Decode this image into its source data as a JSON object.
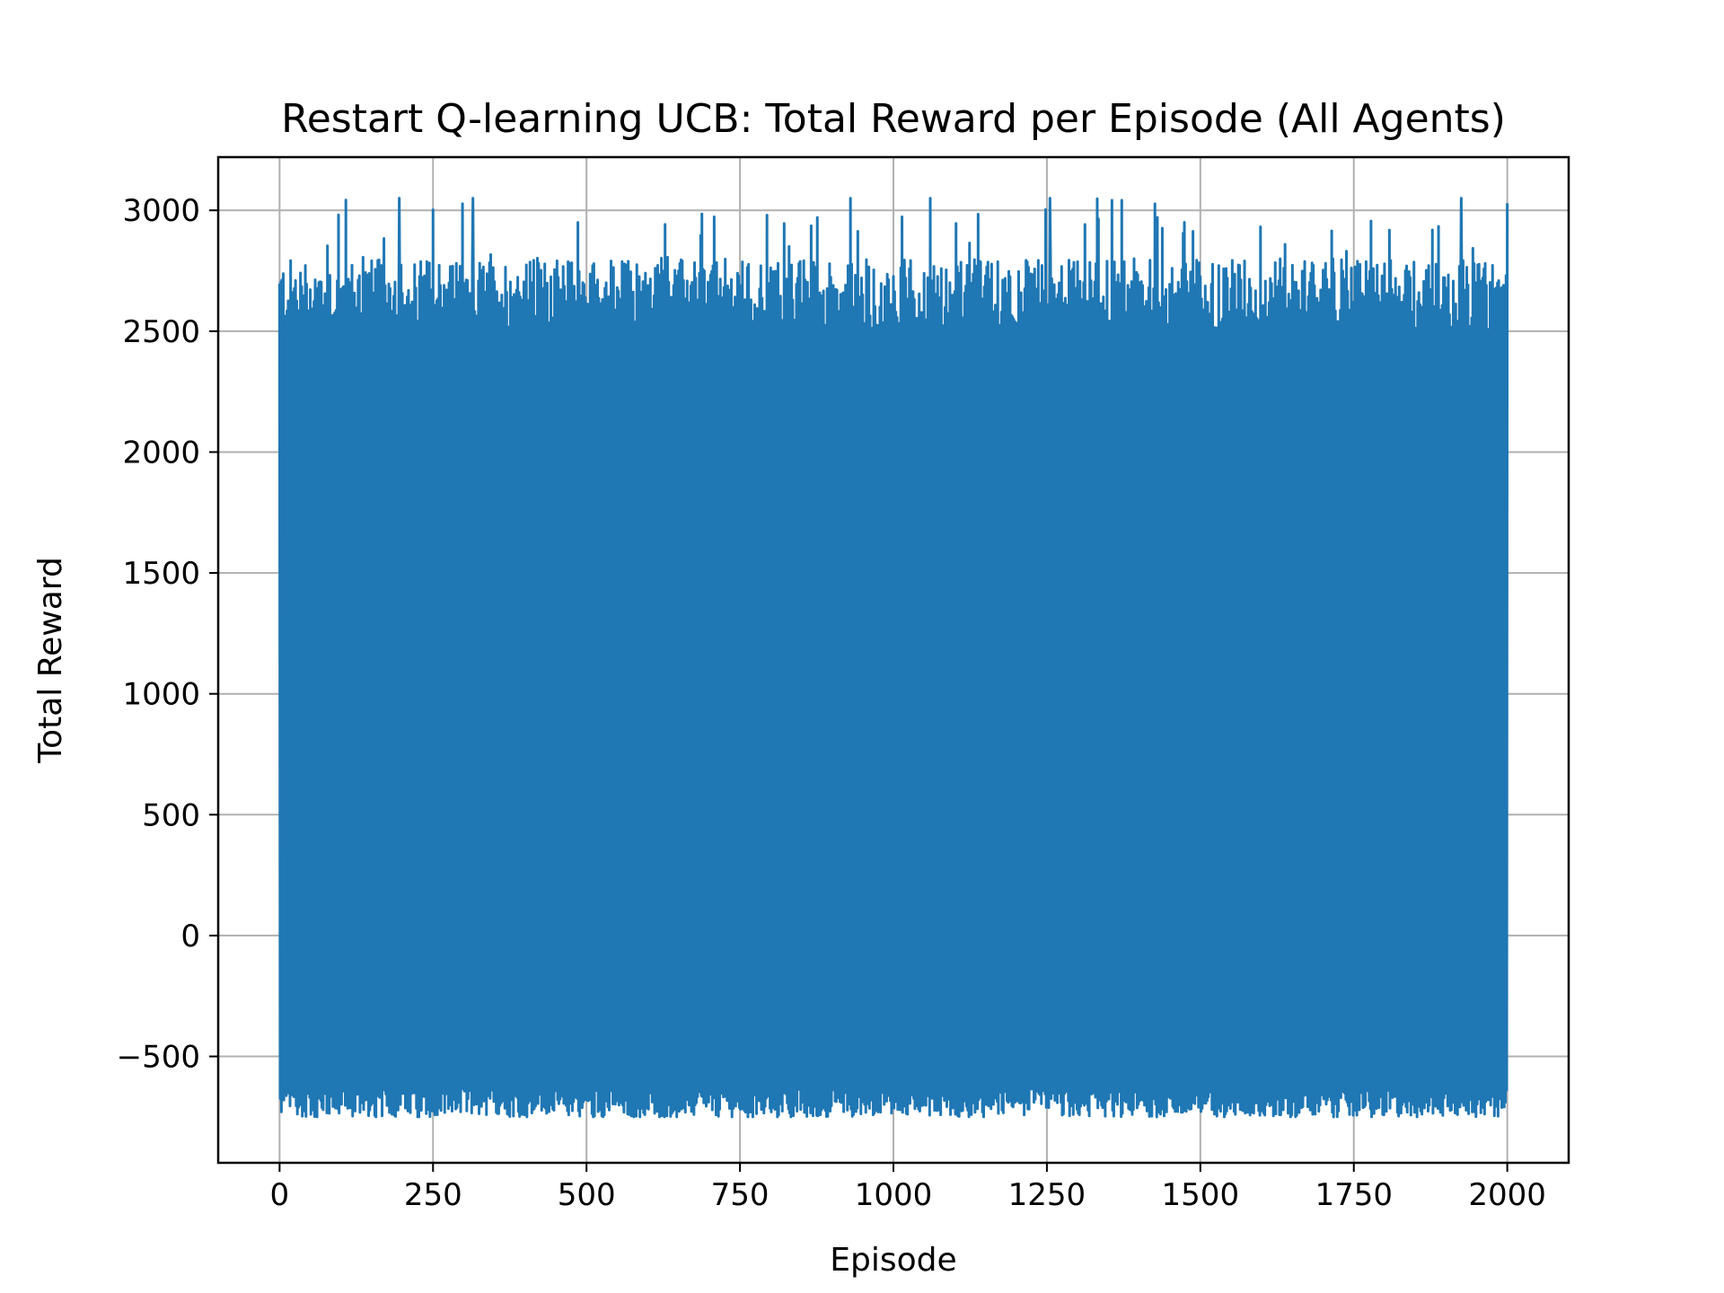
{
  "chart_data": {
    "type": "line",
    "title": "Restart Q-learning UCB: Total Reward per Episode (All Agents)",
    "xlabel": "Episode",
    "ylabel": "Total Reward",
    "xlim": [
      -100,
      2100
    ],
    "ylim": [
      -940,
      3220
    ],
    "xticks": [
      0,
      250,
      500,
      750,
      1000,
      1250,
      1500,
      1750,
      2000
    ],
    "xtick_labels": [
      "0",
      "250",
      "500",
      "750",
      "1000",
      "1250",
      "1500",
      "1750",
      "2000"
    ],
    "yticks": [
      -500,
      0,
      500,
      1000,
      1500,
      2000,
      2500,
      3000
    ],
    "ytick_labels": [
      "−500",
      "0",
      "500",
      "1000",
      "1500",
      "2000",
      "2500",
      "3000"
    ],
    "grid": true,
    "legend": "none",
    "series": [
      {
        "color": "#1f77b4",
        "x_range": [
          0,
          2000
        ],
        "episodes": 2000,
        "typical_range": [
          -600,
          2700
        ],
        "min_approx": -750,
        "max_approx": 3050,
        "notable_peaks": [
          {
            "x": 195,
            "y": 3050
          },
          {
            "x": 315,
            "y": 3050
          },
          {
            "x": 930,
            "y": 3050
          },
          {
            "x": 1060,
            "y": 3050
          },
          {
            "x": 1255,
            "y": 3050
          },
          {
            "x": 1925,
            "y": 3050
          }
        ]
      }
    ]
  }
}
